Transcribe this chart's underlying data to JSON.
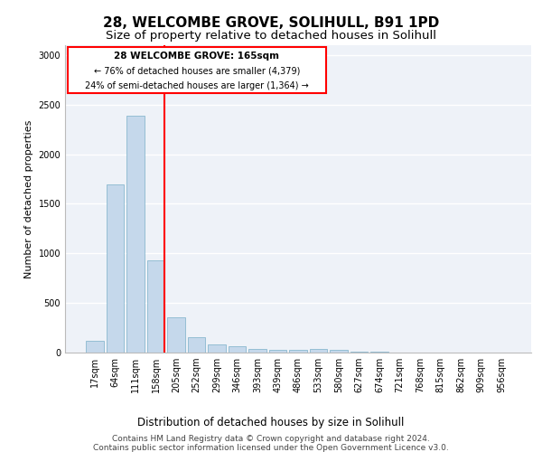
{
  "title_line1": "28, WELCOMBE GROVE, SOLIHULL, B91 1PD",
  "title_line2": "Size of property relative to detached houses in Solihull",
  "xlabel": "Distribution of detached houses by size in Solihull",
  "ylabel": "Number of detached properties",
  "categories": [
    "17sqm",
    "64sqm",
    "111sqm",
    "158sqm",
    "205sqm",
    "252sqm",
    "299sqm",
    "346sqm",
    "393sqm",
    "439sqm",
    "486sqm",
    "533sqm",
    "580sqm",
    "627sqm",
    "674sqm",
    "721sqm",
    "768sqm",
    "815sqm",
    "862sqm",
    "909sqm",
    "956sqm"
  ],
  "values": [
    120,
    1700,
    2390,
    930,
    360,
    155,
    80,
    60,
    40,
    30,
    30,
    40,
    30,
    10,
    5,
    3,
    2,
    1,
    1,
    1,
    1
  ],
  "bar_color": "#c5d8eb",
  "bar_edge_color": "#7aafc8",
  "red_line_label": "28 WELCOMBE GROVE: 165sqm",
  "annotation_line2": "← 76% of detached houses are smaller (4,379)",
  "annotation_line3": "24% of semi-detached houses are larger (1,364) →",
  "ylim": [
    0,
    3100
  ],
  "yticks": [
    0,
    500,
    1000,
    1500,
    2000,
    2500,
    3000
  ],
  "background_color": "#eef2f8",
  "footer_line1": "Contains HM Land Registry data © Crown copyright and database right 2024.",
  "footer_line2": "Contains public sector information licensed under the Open Government Licence v3.0.",
  "title_fontsize": 11,
  "subtitle_fontsize": 9.5,
  "axis_label_fontsize": 8,
  "tick_fontsize": 7,
  "footer_fontsize": 6.5
}
